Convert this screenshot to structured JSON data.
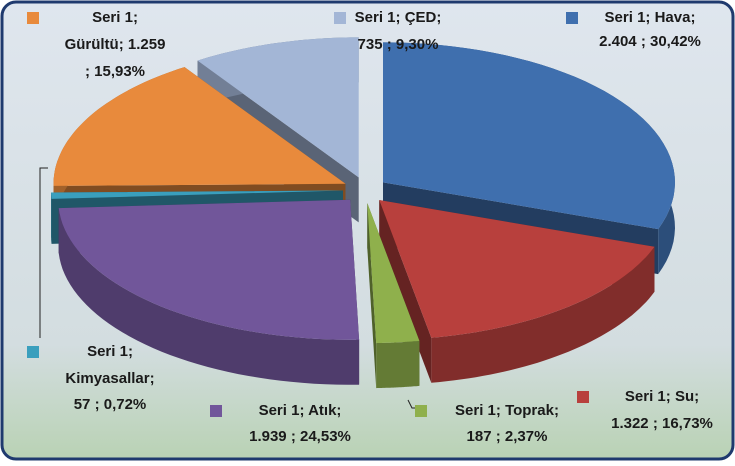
{
  "chart_data": {
    "type": "pie",
    "series_name": "Seri 1",
    "separator": ";",
    "categories": [
      "Hava",
      "Su",
      "Toprak",
      "Atık",
      "Kimyasallar",
      "Gürültü",
      "ÇED"
    ],
    "values": [
      2404,
      1322,
      187,
      1939,
      57,
      1259,
      735
    ],
    "value_labels": [
      "2.404",
      "1.322",
      "187",
      "1.939",
      "57",
      "1.259",
      "735"
    ],
    "percentages": [
      30.42,
      16.73,
      2.37,
      24.53,
      0.72,
      15.93,
      9.3
    ],
    "percentage_labels": [
      "30,42%",
      "16,73%",
      "2,37%",
      "24,53%",
      "0,72%",
      "15,93%",
      "9,30%"
    ],
    "colors": [
      "#3f6fae",
      "#b8403d",
      "#8fb04c",
      "#71569a",
      "#3a9fbd",
      "#e88a3c",
      "#a3b6d6"
    ]
  }
}
